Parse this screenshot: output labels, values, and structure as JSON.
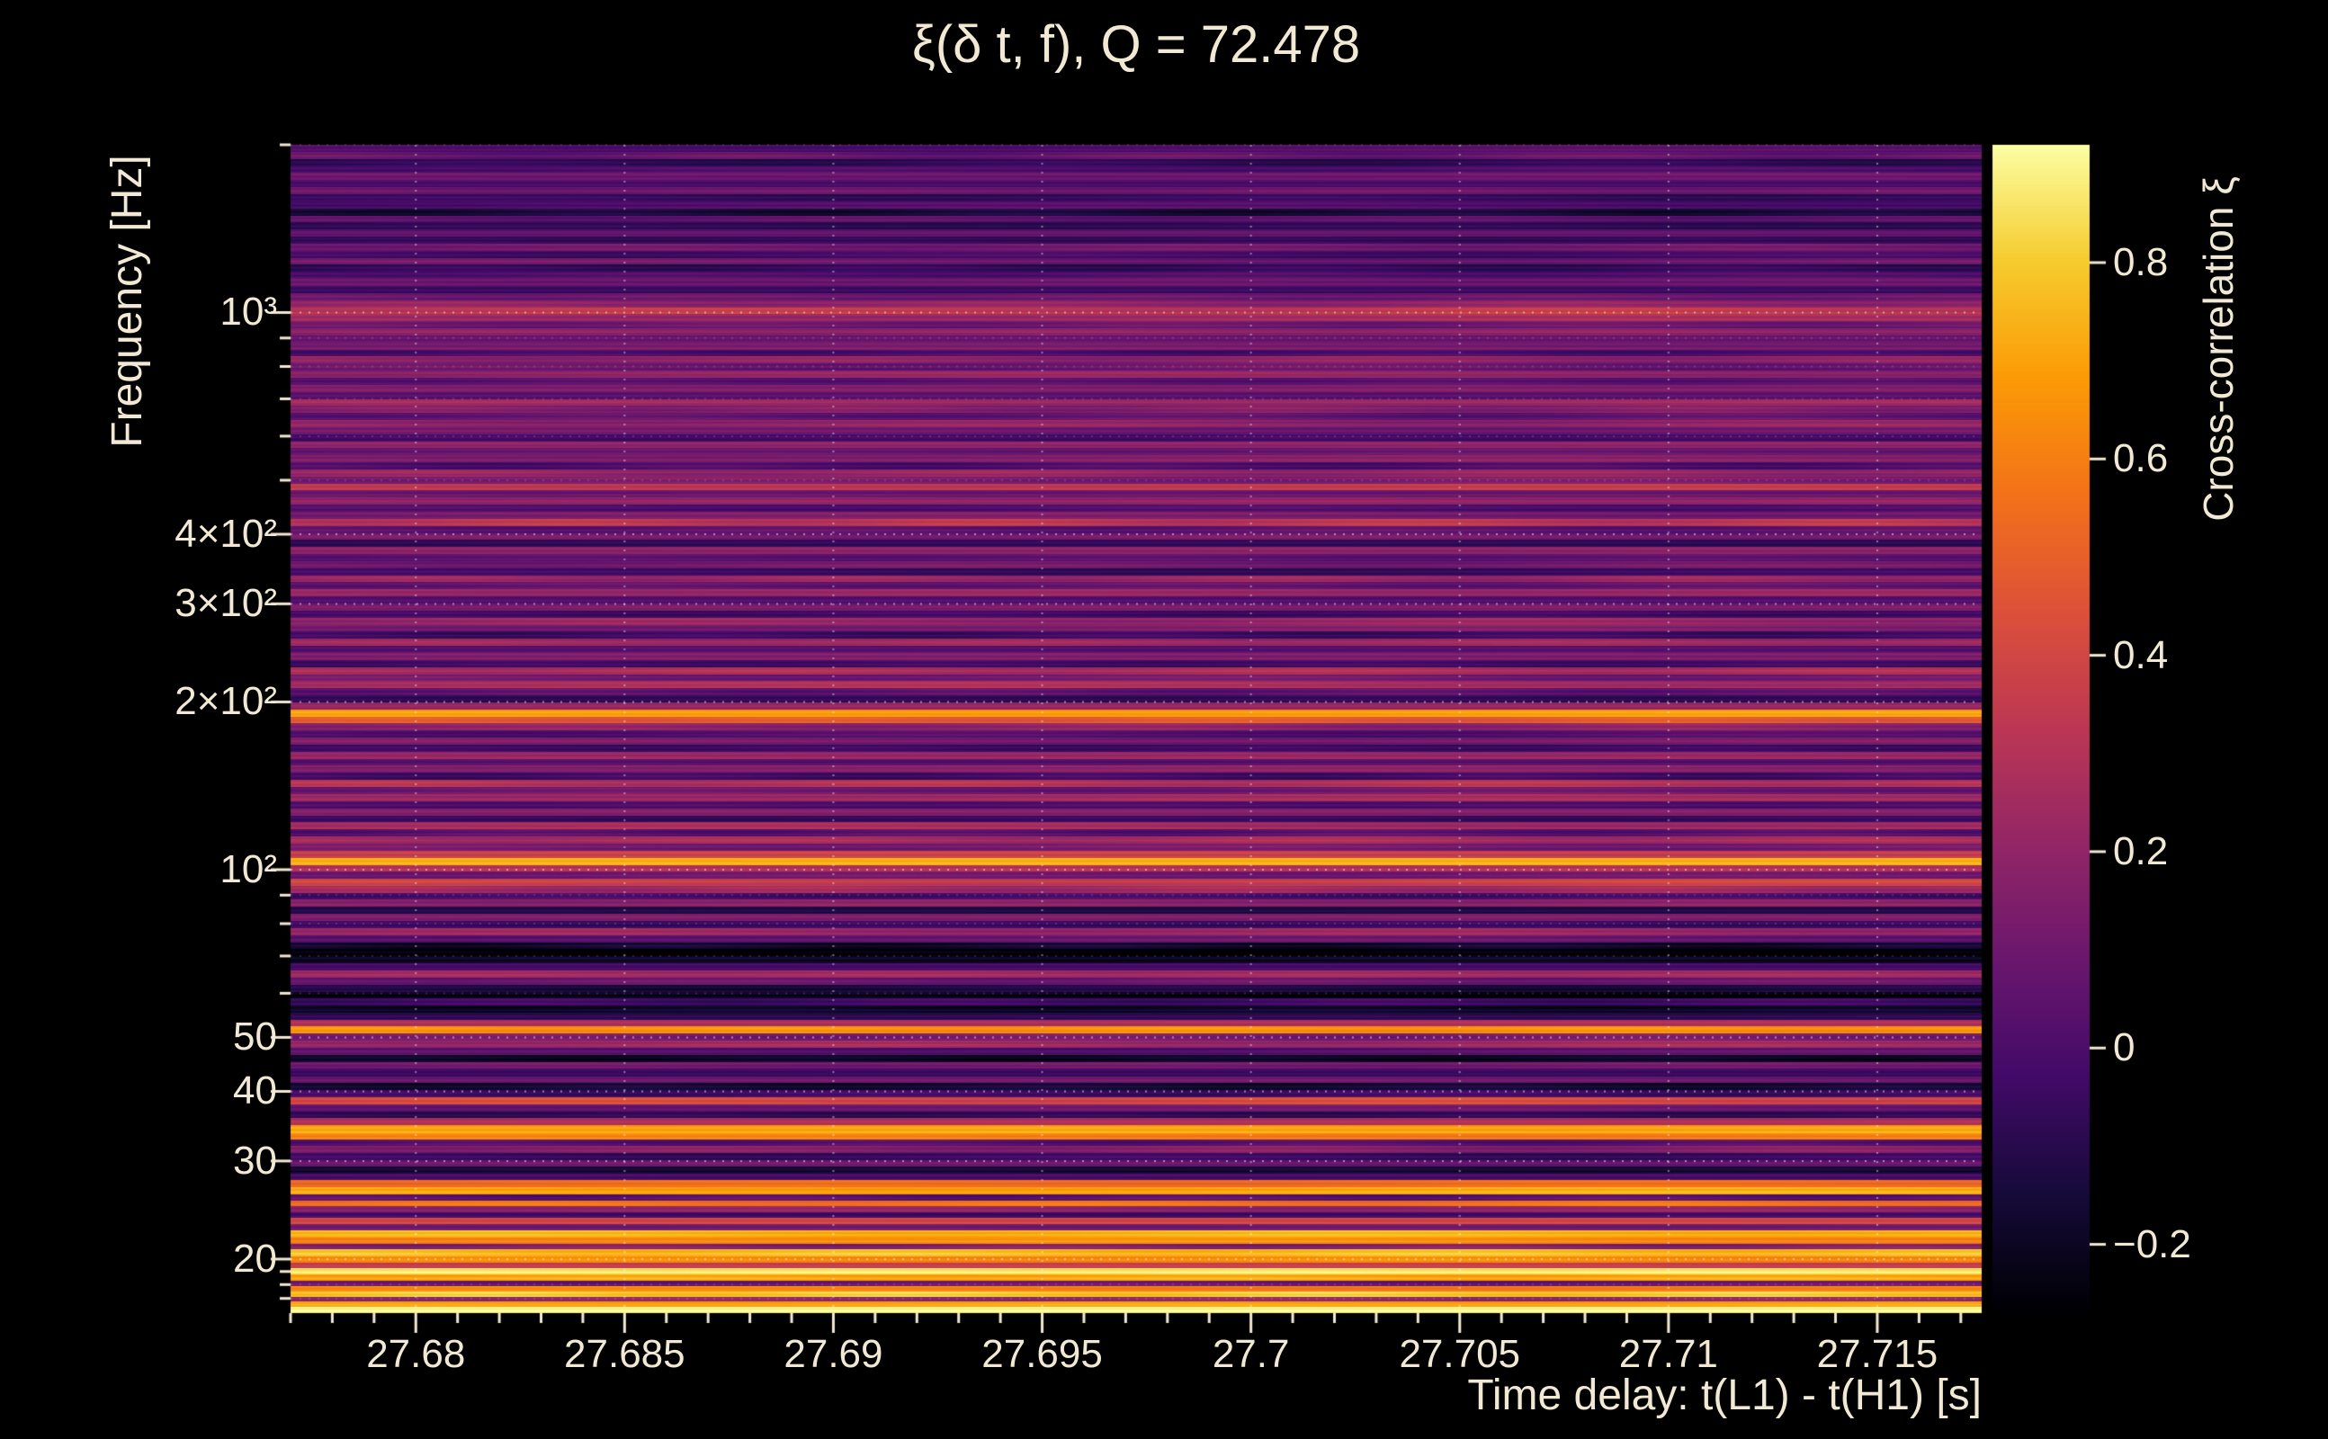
{
  "colors": {
    "background": "#000000",
    "text": "#f2e9d4",
    "tick": "#f2e9d4",
    "grid": "#ffffff"
  },
  "chart_data": {
    "type": "heatmap",
    "title": "ξ(δ t, f), Q = 72.478",
    "xlabel": "Time delay: t(L1) - t(H1) [s]",
    "ylabel": "Frequency [Hz]",
    "colorbar_label": "Cross-correlation ξ",
    "colormap": "inferno",
    "x_range": [
      27.677,
      27.7175
    ],
    "y_range_hz": [
      16,
      2000
    ],
    "y_scale": "log",
    "value_range": [
      -0.27,
      0.92
    ],
    "x_ticks": [
      27.68,
      27.685,
      27.69,
      27.695,
      27.7,
      27.705,
      27.71,
      27.715
    ],
    "x_tick_labels": [
      "27.68",
      "27.685",
      "27.69",
      "27.695",
      "27.7",
      "27.705",
      "27.71",
      "27.715"
    ],
    "x_minor_step": 0.001,
    "y_ticks": [
      {
        "f": 1000,
        "label": "10³"
      },
      {
        "f": 400,
        "label": "4×10²"
      },
      {
        "f": 300,
        "label": "3×10²"
      },
      {
        "f": 200,
        "label": "2×10²"
      },
      {
        "f": 100,
        "label": "10²"
      },
      {
        "f": 50,
        "label": "50"
      },
      {
        "f": 40,
        "label": "40"
      },
      {
        "f": 30,
        "label": "30"
      },
      {
        "f": 20,
        "label": "20"
      }
    ],
    "y_minor_ticks": [
      17,
      18,
      19,
      60,
      70,
      80,
      90,
      500,
      600,
      700,
      800,
      900,
      2000
    ],
    "colorbar_ticks": [
      {
        "v": 0.8,
        "label": "0.8"
      },
      {
        "v": 0.6,
        "label": "0.6"
      },
      {
        "v": 0.4,
        "label": "0.4"
      },
      {
        "v": 0.2,
        "label": "0.2"
      },
      {
        "v": 0,
        "label": "0"
      },
      {
        "v": -0.2,
        "label": "−0.2"
      }
    ],
    "colormap_stops": [
      [
        0.0,
        [
          0,
          0,
          4
        ]
      ],
      [
        0.1,
        [
          22,
          11,
          57
        ]
      ],
      [
        0.2,
        [
          66,
          10,
          104
        ]
      ],
      [
        0.3,
        [
          106,
          23,
          110
        ]
      ],
      [
        0.4,
        [
          147,
          38,
          103
        ]
      ],
      [
        0.5,
        [
          188,
          55,
          84
        ]
      ],
      [
        0.6,
        [
          221,
          81,
          58
        ]
      ],
      [
        0.7,
        [
          243,
          114,
          25
        ]
      ],
      [
        0.8,
        [
          252,
          155,
          6
        ]
      ],
      [
        0.9,
        [
          246,
          204,
          46
        ]
      ],
      [
        1.0,
        [
          252,
          255,
          164
        ]
      ]
    ],
    "rows": [
      [
        16,
        0.9
      ],
      [
        16.4,
        0.72
      ],
      [
        16.8,
        0.2
      ],
      [
        17.1,
        0.78
      ],
      [
        17.5,
        0.6
      ],
      [
        17.9,
        0.1
      ],
      [
        18.3,
        0.72
      ],
      [
        18.8,
        0.85
      ],
      [
        19.3,
        0.35
      ],
      [
        19.7,
        0.65
      ],
      [
        20.2,
        0.78
      ],
      [
        20.8,
        0.15
      ],
      [
        21.3,
        0.62
      ],
      [
        21.9,
        0.74
      ],
      [
        22.5,
        0.12
      ],
      [
        23.1,
        0.4
      ],
      [
        23.7,
        -0.05
      ],
      [
        24.3,
        0.18
      ],
      [
        24.9,
        0.58
      ],
      [
        25.5,
        0.05
      ],
      [
        26.1,
        0.7
      ],
      [
        26.9,
        0.52
      ],
      [
        27.7,
        -0.02
      ],
      [
        28.5,
        -0.14
      ],
      [
        29.3,
        0.1
      ],
      [
        30.1,
        -0.06
      ],
      [
        31,
        0.14
      ],
      [
        31.9,
        0.02
      ],
      [
        32.8,
        0.62
      ],
      [
        33.7,
        0.72
      ],
      [
        34.8,
        0.28
      ],
      [
        35.8,
        -0.1
      ],
      [
        36.8,
        0.08
      ],
      [
        37.9,
        0.42
      ],
      [
        39,
        -0.02
      ],
      [
        40.2,
        -0.16
      ],
      [
        41.4,
        0.08
      ],
      [
        42.6,
        -0.06
      ],
      [
        43.9,
        0.12
      ],
      [
        45.2,
        -0.18
      ],
      [
        46.5,
        0.04
      ],
      [
        47.9,
        0.22
      ],
      [
        49.3,
        0.1
      ],
      [
        50.8,
        0.66
      ],
      [
        52.3,
        0.3
      ],
      [
        53.8,
        -0.08
      ],
      [
        55.4,
        -0.2
      ],
      [
        57,
        -0.06
      ],
      [
        58.7,
        -0.24
      ],
      [
        60.4,
        -0.12
      ],
      [
        62.2,
        0.1
      ],
      [
        64.1,
        0.24
      ],
      [
        66,
        -0.04
      ],
      [
        67.9,
        -0.2
      ],
      [
        69.9,
        -0.26
      ],
      [
        72,
        -0.16
      ],
      [
        74.1,
        0.06
      ],
      [
        76.3,
        0.2
      ],
      [
        78.6,
        -0.06
      ],
      [
        80.9,
        0.16
      ],
      [
        83.3,
        -0.1
      ],
      [
        85.8,
        0.18
      ],
      [
        88.3,
        -0.04
      ],
      [
        90.9,
        0.22
      ],
      [
        93.6,
        0.38
      ],
      [
        96.4,
        0.12
      ],
      [
        99.2,
        0.3
      ],
      [
        102,
        0.72
      ],
      [
        105,
        0.35
      ],
      [
        108.2,
        0.12
      ],
      [
        111.4,
        0.28
      ],
      [
        114.7,
        0.04
      ],
      [
        118.1,
        0.24
      ],
      [
        121.6,
        -0.08
      ],
      [
        125.2,
        0.16
      ],
      [
        128.9,
        0.02
      ],
      [
        132.7,
        0.26
      ],
      [
        136.6,
        0.08
      ],
      [
        140.7,
        0.28
      ],
      [
        144.9,
        -0.04
      ],
      [
        149.2,
        0.18
      ],
      [
        153.6,
        0.04
      ],
      [
        158.1,
        0.22
      ],
      [
        162.8,
        -0.06
      ],
      [
        167.6,
        0.12
      ],
      [
        172.6,
        0.02
      ],
      [
        177.7,
        0.2
      ],
      [
        183,
        0.48
      ],
      [
        188.4,
        0.68
      ],
      [
        194,
        0.2
      ],
      [
        199.7,
        -0.08
      ],
      [
        205.6,
        0.06
      ],
      [
        211.7,
        0.28
      ],
      [
        218,
        0.1
      ],
      [
        224.4,
        0.26
      ],
      [
        231.1,
        -0.04
      ],
      [
        237.9,
        0.16
      ],
      [
        245,
        0.04
      ],
      [
        252.2,
        0.24
      ],
      [
        259.7,
        -0.06
      ],
      [
        267.4,
        0.12
      ],
      [
        275.3,
        0.22
      ],
      [
        283.4,
        -0.02
      ],
      [
        291.8,
        0.14
      ],
      [
        300.4,
        0
      ],
      [
        309.3,
        0.2
      ],
      [
        318.5,
        0.06
      ],
      [
        327.9,
        0.24
      ],
      [
        337.6,
        -0.04
      ],
      [
        347.6,
        0.1
      ],
      [
        357.9,
        0.02
      ],
      [
        368.5,
        0.18
      ],
      [
        379.4,
        -0.06
      ],
      [
        390.6,
        0.14
      ],
      [
        402.2,
        0.04
      ],
      [
        414.1,
        0.3
      ],
      [
        426.3,
        0.12
      ],
      [
        438.9,
        0.02
      ],
      [
        451.9,
        0.22
      ],
      [
        465.3,
        0.08
      ],
      [
        479.1,
        0.32
      ],
      [
        493.2,
        0.12
      ],
      [
        507.8,
        0.22
      ],
      [
        522.8,
        0.02
      ],
      [
        538.3,
        0.16
      ],
      [
        554.2,
        0.06
      ],
      [
        570.6,
        0.18
      ],
      [
        587.5,
        -0.02
      ],
      [
        604.9,
        0.12
      ],
      [
        622.8,
        0.2
      ],
      [
        641.2,
        0.04
      ],
      [
        660.2,
        0.14
      ],
      [
        679.7,
        0.24
      ],
      [
        699.8,
        0.06
      ],
      [
        720.5,
        0.16
      ],
      [
        741.8,
        0.02
      ],
      [
        763.8,
        0.18
      ],
      [
        786.4,
        0.08
      ],
      [
        809.7,
        0.2
      ],
      [
        833.6,
        0
      ],
      [
        858.3,
        0.12
      ],
      [
        883.7,
        0.06
      ],
      [
        909.8,
        0.18
      ],
      [
        936.8,
        0.1
      ],
      [
        964.5,
        0.26
      ],
      [
        993,
        0.34
      ],
      [
        1022.4,
        0.18
      ],
      [
        1052.7,
        0.08
      ],
      [
        1083.8,
        -0.04
      ],
      [
        1115.9,
        0.1
      ],
      [
        1148.9,
        0.02
      ],
      [
        1182.9,
        -0.08
      ],
      [
        1217.9,
        0.08
      ],
      [
        1253.9,
        -0.02
      ],
      [
        1291,
        0.12
      ],
      [
        1329.2,
        -0.06
      ],
      [
        1368.5,
        0.06
      ],
      [
        1409,
        -0.1
      ],
      [
        1450.7,
        0.04
      ],
      [
        1493.6,
        -0.14
      ],
      [
        1537.8,
        0.02
      ],
      [
        1583.3,
        -0.06
      ],
      [
        1630.1,
        0.08
      ],
      [
        1678.3,
        -0.02
      ],
      [
        1727.9,
        0.1
      ],
      [
        1779.1,
        0.02
      ],
      [
        1831.7,
        -0.08
      ],
      [
        1885.9,
        0.06
      ],
      [
        1941.7,
        0
      ],
      [
        1999.1,
        0.1
      ]
    ]
  }
}
